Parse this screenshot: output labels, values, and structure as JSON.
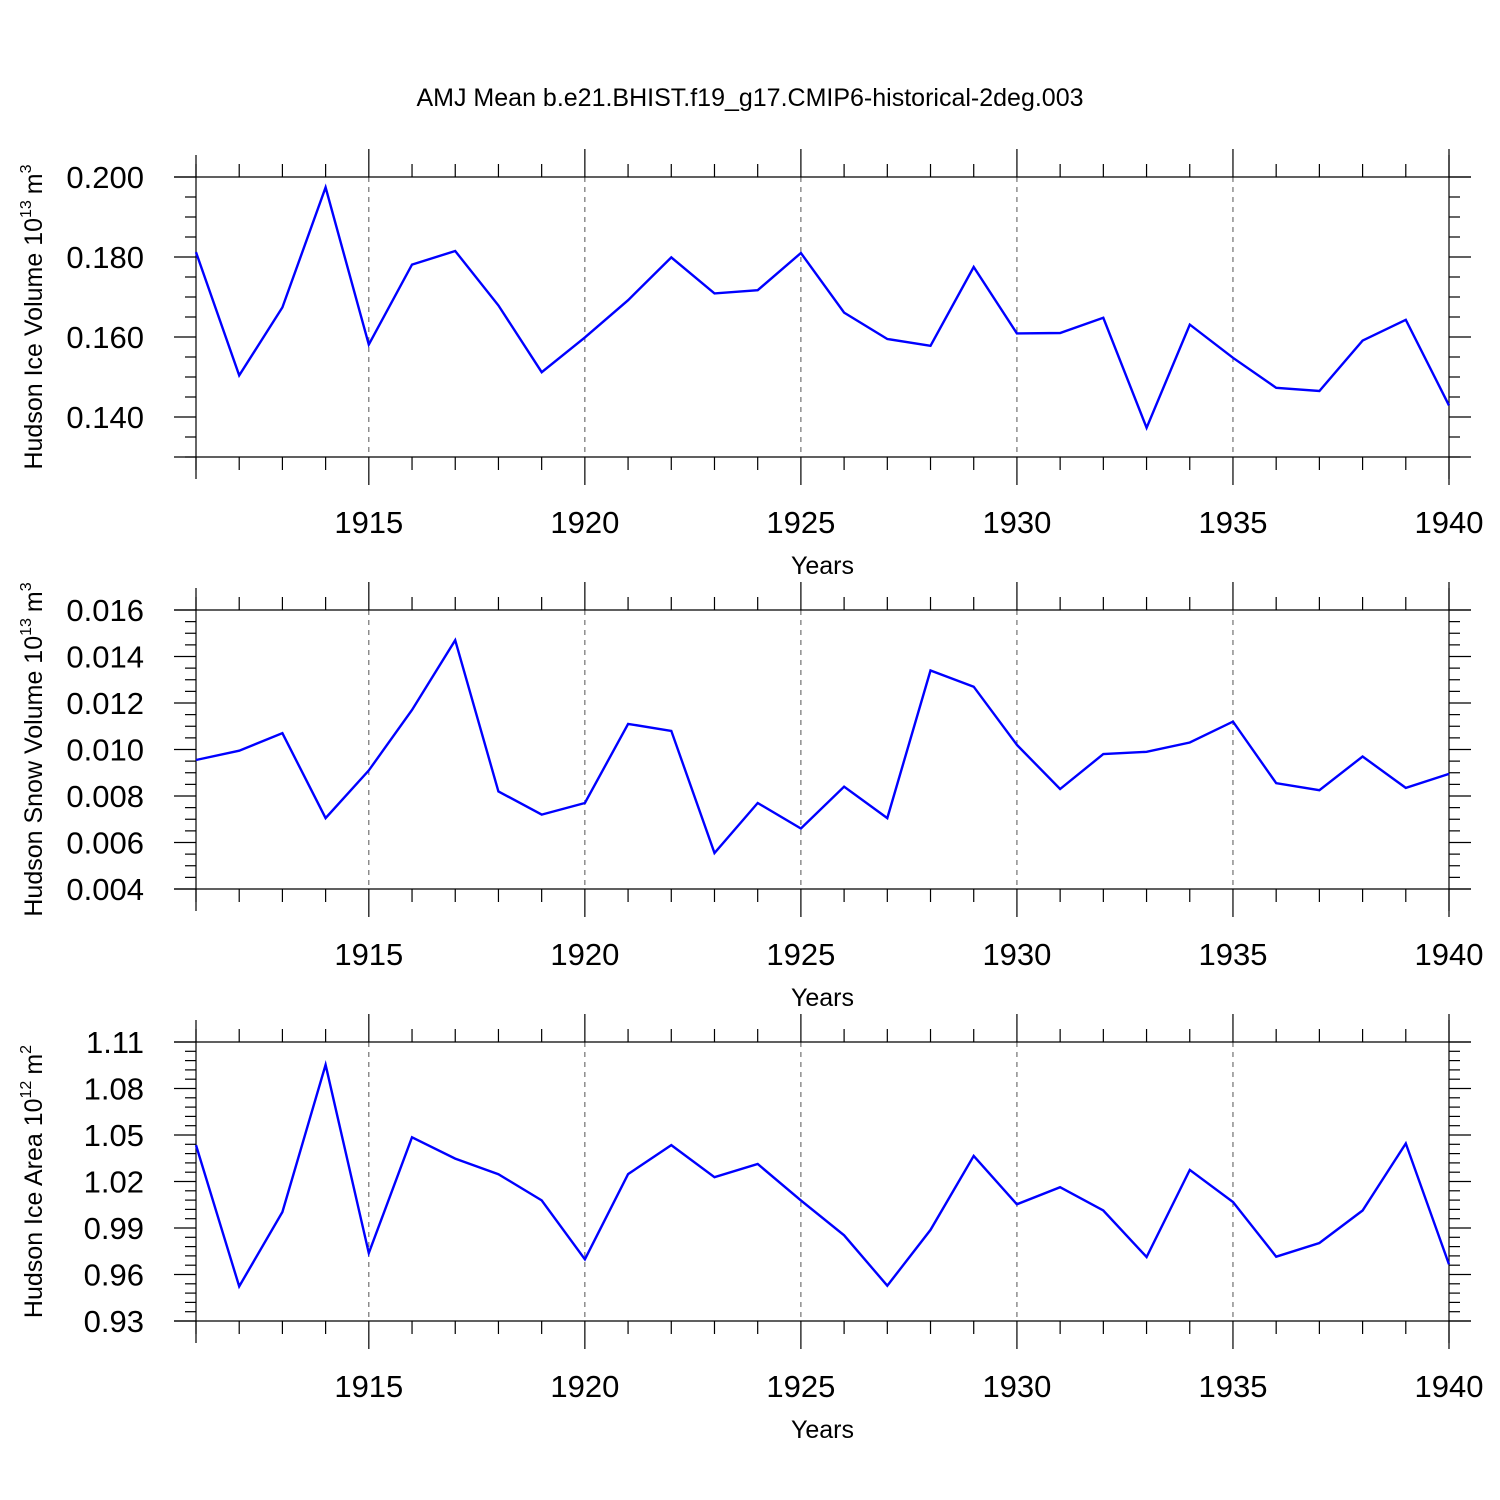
{
  "figure": {
    "title": "AMJ Mean b.e21.BHIST.f19_g17.CMIP6-historical-2deg.003"
  },
  "chart_data": [
    {
      "type": "line",
      "xlabel": "Years",
      "ylabel": "Hudson Ice Volume 10",
      "ylabel_exp": "13",
      "ylabel_unit": "m",
      "ylabel_unit_exp": "3",
      "xlim": [
        1911,
        1940
      ],
      "ylim": [
        0.13,
        0.2
      ],
      "major_yticks": [
        0.14,
        0.16,
        0.18,
        0.2
      ],
      "ytick_labels": [
        "0.140",
        "0.160",
        "0.180",
        "0.200"
      ],
      "minor_ystep": 0.005,
      "major_xticks": [
        1915,
        1920,
        1925,
        1930,
        1935,
        1940
      ],
      "xtick_labels": [
        "1915",
        "1920",
        "1925",
        "1930",
        "1935",
        "1940"
      ],
      "grid": "dashed vertical at major x ticks",
      "color": "#0000ff",
      "x": [
        1911,
        1912,
        1913,
        1914,
        1915,
        1916,
        1917,
        1918,
        1919,
        1920,
        1921,
        1922,
        1923,
        1924,
        1925,
        1926,
        1927,
        1928,
        1929,
        1930,
        1931,
        1932,
        1933,
        1934,
        1935,
        1936,
        1937,
        1938,
        1939,
        1940
      ],
      "y": [
        0.1812,
        0.1504,
        0.1674,
        0.1974,
        0.1581,
        0.1781,
        0.1815,
        0.1679,
        0.1512,
        0.1599,
        0.1692,
        0.1799,
        0.1709,
        0.1717,
        0.181,
        0.1661,
        0.1595,
        0.1578,
        0.1775,
        0.1609,
        0.161,
        0.1648,
        0.1373,
        0.1631,
        0.1548,
        0.1473,
        0.1465,
        0.1591,
        0.1643,
        0.1429
      ]
    },
    {
      "type": "line",
      "xlabel": "Years",
      "ylabel": "Hudson Snow Volume 10",
      "ylabel_exp": "13",
      "ylabel_unit": "m",
      "ylabel_unit_exp": "3",
      "xlim": [
        1911,
        1940
      ],
      "ylim": [
        0.004,
        0.016
      ],
      "major_yticks": [
        0.004,
        0.006,
        0.008,
        0.01,
        0.012,
        0.014,
        0.016
      ],
      "ytick_labels": [
        "0.004",
        "0.006",
        "0.008",
        "0.010",
        "0.012",
        "0.014",
        "0.016"
      ],
      "minor_ystep": 0.0005,
      "major_xticks": [
        1915,
        1920,
        1925,
        1930,
        1935,
        1940
      ],
      "xtick_labels": [
        "1915",
        "1920",
        "1925",
        "1930",
        "1935",
        "1940"
      ],
      "grid": "dashed vertical at major x ticks",
      "color": "#0000ff",
      "x": [
        1911,
        1912,
        1913,
        1914,
        1915,
        1916,
        1917,
        1918,
        1919,
        1920,
        1921,
        1922,
        1923,
        1924,
        1925,
        1926,
        1927,
        1928,
        1929,
        1930,
        1931,
        1932,
        1933,
        1934,
        1935,
        1936,
        1937,
        1938,
        1939,
        1940
      ],
      "y": [
        0.00955,
        0.00995,
        0.0107,
        0.00705,
        0.0091,
        0.0117,
        0.0147,
        0.0082,
        0.0072,
        0.0077,
        0.0111,
        0.0108,
        0.00555,
        0.0077,
        0.0066,
        0.0084,
        0.00705,
        0.0134,
        0.0127,
        0.0102,
        0.0083,
        0.0098,
        0.0099,
        0.0103,
        0.0112,
        0.00855,
        0.00825,
        0.0097,
        0.00835,
        0.00895
      ]
    },
    {
      "type": "line",
      "xlabel": "Years",
      "ylabel": "Hudson Ice Area 10",
      "ylabel_exp": "12",
      "ylabel_unit": "m",
      "ylabel_unit_exp": "2",
      "xlim": [
        1911,
        1940
      ],
      "ylim": [
        0.93,
        1.11
      ],
      "major_yticks": [
        0.93,
        0.96,
        0.99,
        1.02,
        1.05,
        1.08,
        1.11
      ],
      "ytick_labels": [
        "0.93",
        "0.96",
        "0.99",
        "1.02",
        "1.05",
        "1.08",
        "1.11"
      ],
      "minor_ystep": 0.006,
      "major_xticks": [
        1915,
        1920,
        1925,
        1930,
        1935,
        1940
      ],
      "xtick_labels": [
        "1915",
        "1920",
        "1925",
        "1930",
        "1935",
        "1940"
      ],
      "grid": "dashed vertical at major x ticks",
      "color": "#0000ff",
      "x": [
        1911,
        1912,
        1913,
        1914,
        1915,
        1916,
        1917,
        1918,
        1919,
        1920,
        1921,
        1922,
        1923,
        1924,
        1925,
        1926,
        1927,
        1928,
        1929,
        1930,
        1931,
        1932,
        1933,
        1934,
        1935,
        1936,
        1937,
        1938,
        1939,
        1940
      ],
      "y": [
        1.0435,
        0.9523,
        1.0003,
        1.0953,
        0.9738,
        1.0485,
        1.0348,
        1.0247,
        1.0078,
        0.9698,
        1.0248,
        1.0435,
        1.0228,
        1.0313,
        1.0078,
        0.9853,
        0.9528,
        0.9888,
        1.0365,
        1.0053,
        1.0163,
        1.0013,
        0.9713,
        1.0275,
        1.0068,
        0.9715,
        0.9803,
        1.0013,
        1.0445,
        0.9665
      ]
    }
  ]
}
